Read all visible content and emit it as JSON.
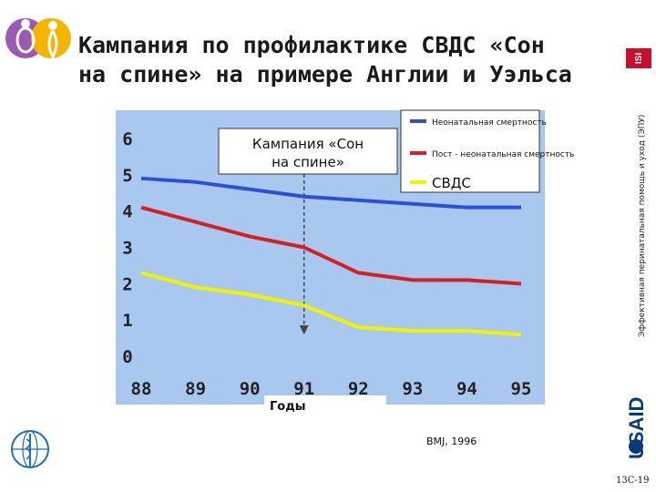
{
  "slide": {
    "title_line1": "Кампания по профилактике СВДС «Сон",
    "title_line2": "на спине» на примере Англии и Уэльса",
    "side_text": "Эффективная перинатальная помощь и уход (ЭПУ)",
    "source": "BMJ, 1996",
    "slide_number": "13C-19",
    "logos": [
      "mother-child-logo",
      "isi-logo",
      "usaid-logo",
      "who-logo"
    ]
  },
  "chart_data": {
    "type": "line",
    "categories": [
      "88",
      "89",
      "90",
      "91",
      "92",
      "93",
      "94",
      "95"
    ],
    "series": [
      {
        "name": "Неонатальная смертность",
        "color": "#2c4fd6",
        "values": [
          4.9,
          4.8,
          4.6,
          4.4,
          4.3,
          4.2,
          4.1,
          4.1
        ]
      },
      {
        "name": "Пост - неонатальная смертность",
        "color": "#d42020",
        "values": [
          4.1,
          3.7,
          3.3,
          3.0,
          2.3,
          2.1,
          2.1,
          2.0
        ]
      },
      {
        "name": "СВДС",
        "color": "#f2f200",
        "values": [
          2.3,
          1.9,
          1.7,
          1.4,
          0.8,
          0.7,
          0.7,
          0.6
        ]
      }
    ],
    "yticks": [
      "0",
      "1",
      "2",
      "3",
      "4",
      "5",
      "6"
    ],
    "ylim": [
      0,
      6
    ],
    "xlabel": "Годы",
    "annotation": "Кампания «Сон на спине»",
    "campaign_at": "91",
    "plot_background": "#a8c8f0",
    "grid": false,
    "legend_position": "top-right"
  }
}
